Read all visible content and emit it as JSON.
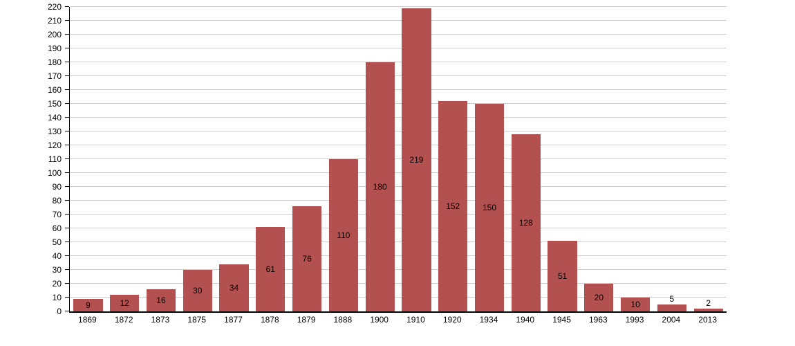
{
  "chart_data": {
    "type": "bar",
    "title": "",
    "xlabel": "",
    "ylabel": "",
    "categories": [
      "1869",
      "1872",
      "1873",
      "1875",
      "1877",
      "1878",
      "1879",
      "1888",
      "1900",
      "1910",
      "1920",
      "1934",
      "1940",
      "1945",
      "1963",
      "1993",
      "2004",
      "2013"
    ],
    "values": [
      9,
      12,
      16,
      30,
      34,
      61,
      76,
      110,
      180,
      219,
      152,
      150,
      128,
      51,
      20,
      10,
      5,
      2
    ],
    "ylim": [
      0,
      220
    ],
    "ytick_step": 10,
    "grid": true,
    "legend": "none",
    "bar_color": "#b35150",
    "gridline_color": "#cccccc",
    "axis_color": "#000000",
    "text_color": "#000000"
  }
}
